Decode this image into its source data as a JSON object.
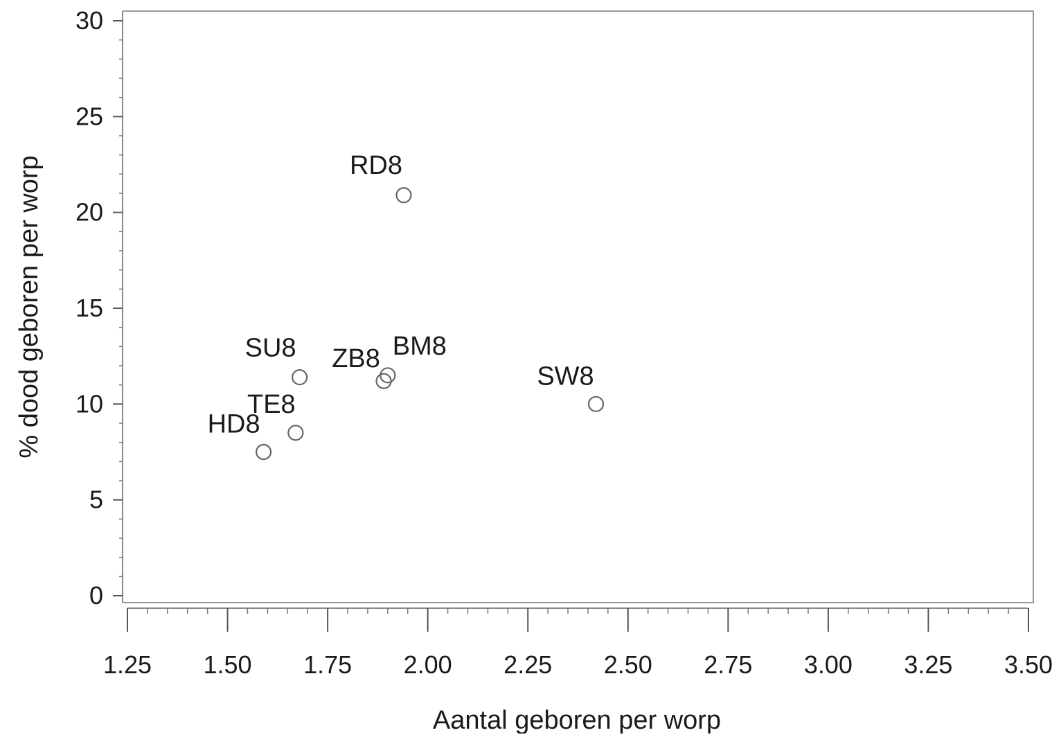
{
  "chart_data": {
    "type": "scatter",
    "xlabel": "Aantal geboren per worp",
    "ylabel": "% dood geboren per worp",
    "xlim": [
      1.25,
      3.5
    ],
    "ylim": [
      0,
      30
    ],
    "x_ticks": [
      "1.25",
      "1.50",
      "1.75",
      "2.00",
      "2.25",
      "2.50",
      "2.75",
      "3.00",
      "3.25",
      "3.50"
    ],
    "y_ticks": [
      "0",
      "5",
      "10",
      "15",
      "20",
      "25",
      "30"
    ],
    "grid": false,
    "points": [
      {
        "label": "RD8",
        "x": 1.94,
        "y": 20.9
      },
      {
        "label": "SU8",
        "x": 1.68,
        "y": 11.4
      },
      {
        "label": "ZB8",
        "x": 1.89,
        "y": 11.2
      },
      {
        "label": "BM8",
        "x": 1.9,
        "y": 11.5
      },
      {
        "label": "SW8",
        "x": 2.42,
        "y": 10.0
      },
      {
        "label": "TE8",
        "x": 1.67,
        "y": 8.5
      },
      {
        "label": "HD8",
        "x": 1.59,
        "y": 7.5
      }
    ],
    "marker_color": "#666666"
  }
}
